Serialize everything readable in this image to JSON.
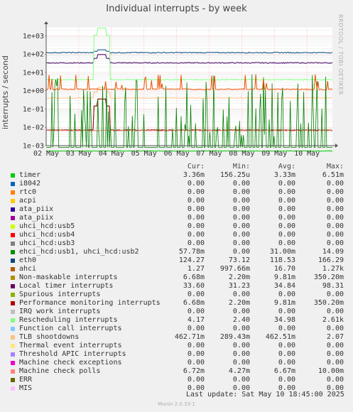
{
  "header": {
    "side_label": "RRDTOOL / TOBI OETIKER",
    "footer": "Munin 2.0.33-1"
  },
  "chart_data": {
    "type": "line",
    "title": "Individual interrupts - by week",
    "ylabel": "interrupts / second",
    "xlabel": "",
    "y_scale": "log",
    "ylim": [
      0.001,
      3000
    ],
    "y_ticks": [
      "1e-03",
      "1e-02",
      "1e-01",
      "1e+00",
      "1e+01",
      "1e+02",
      "1e+03"
    ],
    "x_ticks": [
      "02 May",
      "03 May",
      "04 May",
      "05 May",
      "06 May",
      "07 May",
      "08 May",
      "09 May",
      "10 May"
    ],
    "xlim": [
      "2025-05-02",
      "2025-05-10 18:45"
    ],
    "grid": true,
    "series": [
      {
        "name": "timer",
        "color": "#00cc00",
        "level": 0.0005,
        "note": "below axis"
      },
      {
        "name": "TLB shootdowns",
        "color": "#ffc080",
        "level": 0.4,
        "spike_date": "2025-05-03 17:00",
        "spike": 1.5
      },
      {
        "name": "Local timer interrupts",
        "color": "#440066",
        "level": 33,
        "spike_date": "2025-05-03 17:00",
        "spike": 95
      },
      {
        "name": "eth0",
        "color": "#004a80",
        "level": 120,
        "spike_date": "2025-05-03 17:00",
        "spike": 170
      },
      {
        "name": "Rescheduling interrupts",
        "color": "#80ff80",
        "level": 4,
        "spike_date": "2025-05-03 17:00",
        "spike": 2600
      },
      {
        "name": "Non-maskable interrupts",
        "color": "#8a6200",
        "level": 0.007,
        "spike_date": "2025-05-03 17:00",
        "spike": 0.35
      },
      {
        "name": "Performance monitoring interrupts",
        "color": "#990000",
        "level": 0.007,
        "spike_date": "2025-05-03 17:00",
        "spike": 0.35
      },
      {
        "name": "Machine check polls",
        "color": "#ff8080",
        "level": 0.0067
      },
      {
        "name": "ehci_hcd:usb1, uhci_hcd:usb2",
        "color": "#008000",
        "level": 0.003,
        "note": "frequent spikes to ~14"
      },
      {
        "name": "ahci",
        "color": "#e85000",
        "level": 1.2,
        "note": "periodic spikes"
      }
    ]
  },
  "legend": {
    "headers": [
      "Cur:",
      "Min:",
      "Avg:",
      "Max:"
    ],
    "rows": [
      {
        "name": "timer",
        "color": "#00cc00",
        "cur": "3.36m",
        "min": "156.25u",
        "avg": "3.33m",
        "max": "6.51m"
      },
      {
        "name": "i8042",
        "color": "#0066b3",
        "cur": "0.00",
        "min": "0.00",
        "avg": "0.00",
        "max": "0.00"
      },
      {
        "name": "rtc0",
        "color": "#ff8000",
        "cur": "0.00",
        "min": "0.00",
        "avg": "0.00",
        "max": "0.00"
      },
      {
        "name": "acpi",
        "color": "#ffcc00",
        "cur": "0.00",
        "min": "0.00",
        "avg": "0.00",
        "max": "0.00"
      },
      {
        "name": "ata_piix",
        "color": "#330099",
        "cur": "0.00",
        "min": "0.00",
        "avg": "0.00",
        "max": "0.00"
      },
      {
        "name": "ata_piix",
        "color": "#990099",
        "cur": "0.00",
        "min": "0.00",
        "avg": "0.00",
        "max": "0.00"
      },
      {
        "name": "uhci_hcd:usb5",
        "color": "#ccff00",
        "cur": "0.00",
        "min": "0.00",
        "avg": "0.00",
        "max": "0.00"
      },
      {
        "name": "uhci_hcd:usb4",
        "color": "#ff0000",
        "cur": "0.00",
        "min": "0.00",
        "avg": "0.00",
        "max": "0.00"
      },
      {
        "name": "uhci_hcd:usb3",
        "color": "#808080",
        "cur": "0.00",
        "min": "0.00",
        "avg": "0.00",
        "max": "0.00"
      },
      {
        "name": "ehci_hcd:usb1, uhci_hcd:usb2",
        "color": "#008f00",
        "cur": "57.78m",
        "min": "0.00",
        "avg": "31.00m",
        "max": "14.09"
      },
      {
        "name": "eth0",
        "color": "#00487d",
        "cur": "124.27",
        "min": "73.12",
        "avg": "118.53",
        "max": "166.29"
      },
      {
        "name": "ahci",
        "color": "#b35a00",
        "cur": "1.27",
        "min": "997.66m",
        "avg": "16.70",
        "max": "1.27k"
      },
      {
        "name": "Non-maskable interrupts",
        "color": "#b38f00",
        "cur": "6.68m",
        "min": "2.20m",
        "avg": "9.81m",
        "max": "350.20m"
      },
      {
        "name": "Local timer interrupts",
        "color": "#6b006b",
        "cur": "33.60",
        "min": "31.23",
        "avg": "34.84",
        "max": "98.31"
      },
      {
        "name": "Spurious interrupts",
        "color": "#8fb300",
        "cur": "0.00",
        "min": "0.00",
        "avg": "0.00",
        "max": "0.00"
      },
      {
        "name": "Performance monitoring interrupts",
        "color": "#b30000",
        "cur": "6.68m",
        "min": "2.20m",
        "avg": "9.81m",
        "max": "350.20m"
      },
      {
        "name": "IRQ work interrupts",
        "color": "#bebebe",
        "cur": "0.00",
        "min": "0.00",
        "avg": "0.00",
        "max": "0.00"
      },
      {
        "name": "Rescheduling interrupts",
        "color": "#80ff80",
        "cur": "4.17",
        "min": "2.40",
        "avg": "34.98",
        "max": "2.61k"
      },
      {
        "name": "Function call interrupts",
        "color": "#80c9ff",
        "cur": "0.00",
        "min": "0.00",
        "avg": "0.00",
        "max": "0.00"
      },
      {
        "name": "TLB shootdowns",
        "color": "#ffc080",
        "cur": "462.71m",
        "min": "289.43m",
        "avg": "462.51m",
        "max": "2.07"
      },
      {
        "name": "Thermal event interrupts",
        "color": "#ffe680",
        "cur": "0.00",
        "min": "0.00",
        "avg": "0.00",
        "max": "0.00"
      },
      {
        "name": "Threshold APIC interrupts",
        "color": "#aa80ff",
        "cur": "0.00",
        "min": "0.00",
        "avg": "0.00",
        "max": "0.00"
      },
      {
        "name": "Machine check exceptions",
        "color": "#ee00cc",
        "cur": "0.00",
        "min": "0.00",
        "avg": "0.00",
        "max": "0.00"
      },
      {
        "name": "Machine check polls",
        "color": "#ff8080",
        "cur": "6.72m",
        "min": "4.27m",
        "avg": "6.67m",
        "max": "10.00m"
      },
      {
        "name": "ERR",
        "color": "#666600",
        "cur": "0.00",
        "min": "0.00",
        "avg": "0.00",
        "max": "0.00"
      },
      {
        "name": "MIS",
        "color": "#ffbfff",
        "cur": "0.00",
        "min": "0.00",
        "avg": "0.00",
        "max": "0.00"
      }
    ]
  },
  "last_update": "Last update:  Sat May 10 18:45:00 2025"
}
